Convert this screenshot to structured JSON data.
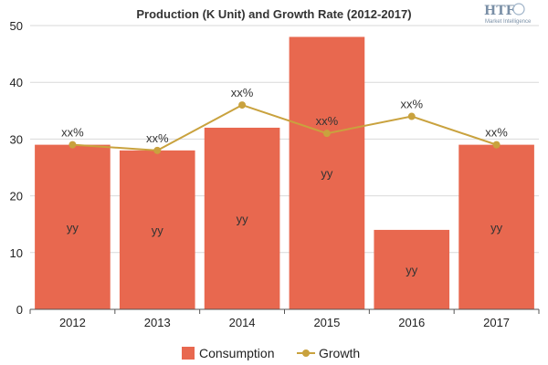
{
  "chart_data": {
    "type": "bar",
    "title": "Production (K Unit) and Growth Rate (2012-2017)",
    "categories": [
      "2012",
      "2013",
      "2014",
      "2015",
      "2016",
      "2017"
    ],
    "ylim": [
      0,
      50
    ],
    "yticks": [
      0,
      10,
      20,
      30,
      40,
      50
    ],
    "grid": true,
    "legend_position": "bottom-center",
    "series": [
      {
        "name": "Consumption",
        "type": "bar",
        "color": "#e8684f",
        "values": [
          29,
          28,
          32,
          48,
          14,
          29
        ],
        "labels": [
          "yy",
          "yy",
          "yy",
          "yy",
          "yy",
          "yy"
        ]
      },
      {
        "name": "Growth",
        "type": "line",
        "color": "#c9a23e",
        "values": [
          29,
          28,
          36,
          31,
          34,
          29
        ],
        "labels": [
          "xx%",
          "xx%",
          "xx%",
          "xx%",
          "xx%",
          "xx%"
        ]
      }
    ]
  },
  "logo": {
    "main": "HTF",
    "sub": "Market Intelligence"
  }
}
